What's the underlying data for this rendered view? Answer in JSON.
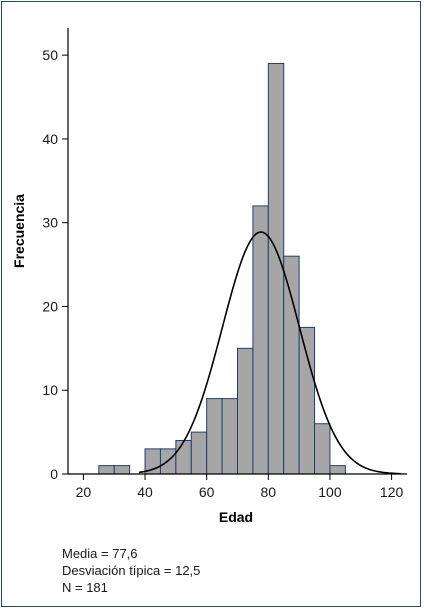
{
  "chart_data": {
    "type": "histogram",
    "xlabel": "Edad",
    "ylabel": "Frecuencia",
    "xlim": [
      15,
      125
    ],
    "ylim": [
      0,
      53
    ],
    "xticks": [
      20,
      40,
      60,
      80,
      100,
      120
    ],
    "yticks": [
      0,
      10,
      20,
      30,
      40,
      50
    ],
    "bin_width": 5,
    "bins": [
      {
        "start": 25,
        "end": 30,
        "count": 1
      },
      {
        "start": 30,
        "end": 35,
        "count": 1
      },
      {
        "start": 40,
        "end": 45,
        "count": 3
      },
      {
        "start": 45,
        "end": 50,
        "count": 3
      },
      {
        "start": 50,
        "end": 55,
        "count": 4
      },
      {
        "start": 55,
        "end": 60,
        "count": 5
      },
      {
        "start": 60,
        "end": 65,
        "count": 9
      },
      {
        "start": 65,
        "end": 70,
        "count": 9
      },
      {
        "start": 70,
        "end": 75,
        "count": 15
      },
      {
        "start": 75,
        "end": 80,
        "count": 32
      },
      {
        "start": 80,
        "end": 85,
        "count": 49
      },
      {
        "start": 85,
        "end": 90,
        "count": 26
      },
      {
        "start": 90,
        "end": 95,
        "count": 17.5
      },
      {
        "start": 95,
        "end": 100,
        "count": 6
      },
      {
        "start": 100,
        "end": 105,
        "count": 1
      }
    ],
    "normal_curve": {
      "mean": 77.6,
      "sd": 12.5,
      "n": 181,
      "x_range": [
        38,
        123
      ]
    },
    "colors": {
      "bar_fill": "#a6a6a6",
      "bar_stroke": "#1f3f73",
      "curve": "#000000",
      "frame": "#1f4a7a"
    },
    "grid": false,
    "legend": "none"
  },
  "stats": {
    "mean_text": "Media = 77,6",
    "sd_text": "Desviación típica = 12,5",
    "n_text": "N = 181"
  }
}
